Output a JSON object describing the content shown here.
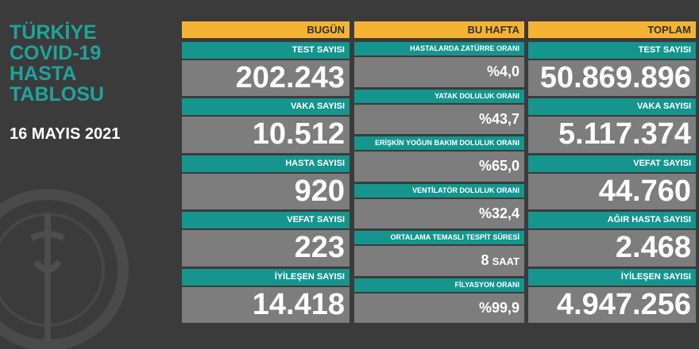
{
  "title": [
    "TÜRKİYE",
    "COVID-19",
    "HASTA",
    "TABLOSU"
  ],
  "date": "16 MAYIS 2021",
  "columns": [
    {
      "header": "BUGÜN",
      "items": [
        {
          "label": "TEST SAYISI",
          "value": "202.243"
        },
        {
          "label": "VAKA SAYISI",
          "value": "10.512"
        },
        {
          "label": "HASTA SAYISI",
          "value": "920"
        },
        {
          "label": "VEFAT SAYISI",
          "value": "223"
        },
        {
          "label": "İYİLEŞEN SAYISI",
          "value": "14.418"
        }
      ]
    },
    {
      "header": "BU HAFTA",
      "items": [
        {
          "label": "HASTALARDA ZATÜRRE ORANI",
          "value": "%4,0"
        },
        {
          "label": "YATAK DOLULUK ORANI",
          "value": "%43,7"
        },
        {
          "label": "ERİŞKİN YOĞUN BAKIM DOLULUK ORANI",
          "value": "%65,0"
        },
        {
          "label": "VENTİLATÖR DOLULUK ORANI",
          "value": "%32,4"
        },
        {
          "label": "ORTALAMA TEMASLI TESPİT SÜRESİ",
          "value": "8",
          "unit": "SAAT"
        },
        {
          "label": "FİLYASYON ORANI",
          "value": "%99,9"
        }
      ]
    },
    {
      "header": "TOPLAM",
      "items": [
        {
          "label": "TEST SAYISI",
          "value": "50.869.896"
        },
        {
          "label": "VAKA SAYISI",
          "value": "5.117.374"
        },
        {
          "label": "VEFAT SAYISI",
          "value": "44.760"
        },
        {
          "label": "AĞIR HASTA SAYISI",
          "value": "2.468"
        },
        {
          "label": "İYİLEŞEN SAYISI",
          "value": "4.947.256"
        }
      ]
    }
  ]
}
